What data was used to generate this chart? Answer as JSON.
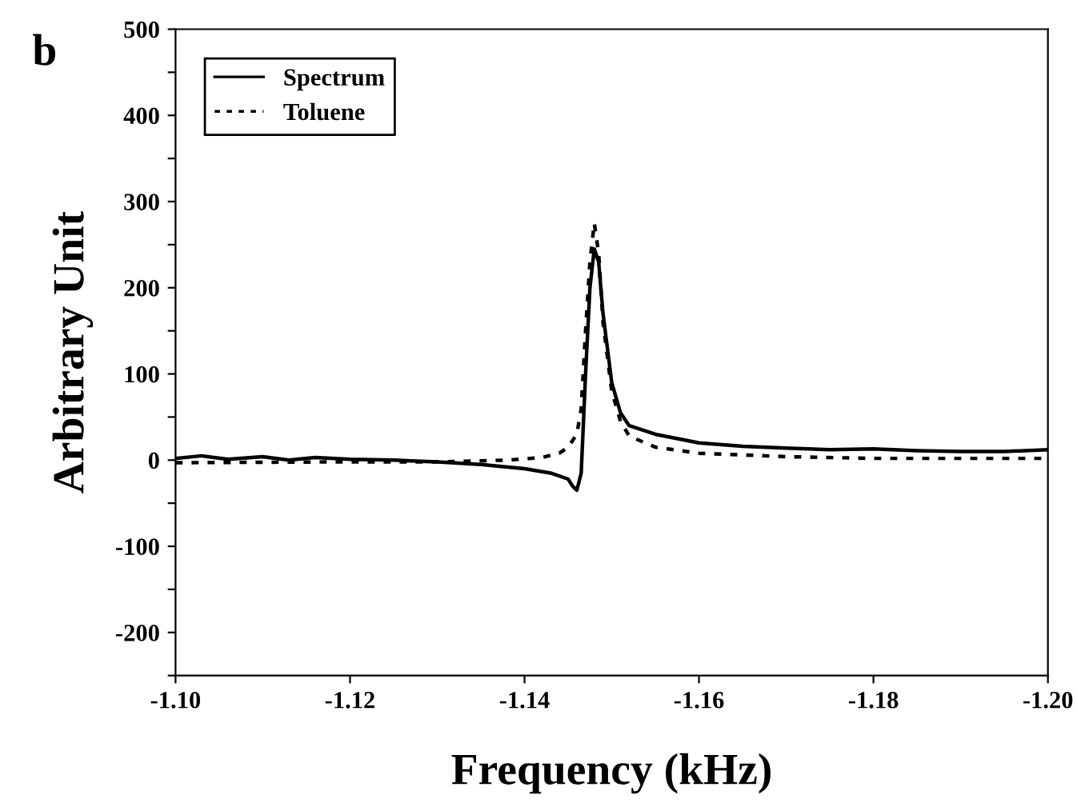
{
  "chart_data": {
    "type": "line",
    "title": "b",
    "xlabel": "Frequency (kHz)",
    "ylabel": "Arbitrary Unit",
    "xlim": [
      -1.1,
      -1.2
    ],
    "ylim": [
      -250,
      500
    ],
    "xticks": [
      {
        "value": -1.1,
        "label": "-1.10"
      },
      {
        "value": -1.12,
        "label": "-1.12"
      },
      {
        "value": -1.14,
        "label": "-1.14"
      },
      {
        "value": -1.16,
        "label": "-1.16"
      },
      {
        "value": -1.18,
        "label": "-1.18"
      },
      {
        "value": -1.2,
        "label": "-1.20"
      }
    ],
    "yticks": [
      {
        "value": -250,
        "label": null
      },
      -200,
      {
        "value": -150,
        "label": null
      },
      -100,
      {
        "value": -50,
        "label": null
      },
      0,
      {
        "value": 50,
        "label": null
      },
      100,
      {
        "value": 150,
        "label": null
      },
      200,
      {
        "value": 250,
        "label": null
      },
      300,
      {
        "value": 350,
        "label": null
      },
      400,
      {
        "value": 450,
        "label": null
      },
      500
    ],
    "legend": "top left",
    "grid": false,
    "marker": "none",
    "series": [
      {
        "name": "Spectrum",
        "color": "#000000",
        "line_style": "solid",
        "x": [
          -1.1,
          -1.103,
          -1.106,
          -1.11,
          -1.113,
          -1.116,
          -1.12,
          -1.125,
          -1.13,
          -1.135,
          -1.14,
          -1.143,
          -1.145,
          -1.1455,
          -1.146,
          -1.1465,
          -1.147,
          -1.1475,
          -1.148,
          -1.1485,
          -1.149,
          -1.15,
          -1.151,
          -1.152,
          -1.155,
          -1.16,
          -1.165,
          -1.17,
          -1.175,
          -1.18,
          -1.185,
          -1.19,
          -1.195,
          -1.2
        ],
        "values": [
          2,
          5,
          1,
          4,
          0,
          3,
          1,
          0,
          -2,
          -5,
          -10,
          -15,
          -22,
          -30,
          -35,
          -15,
          100,
          200,
          245,
          230,
          170,
          90,
          55,
          40,
          30,
          20,
          16,
          14,
          12,
          13,
          11,
          10,
          10,
          12
        ]
      },
      {
        "name": "Toluene",
        "color": "#000000",
        "line_style": "dotted",
        "x": [
          -1.1,
          -1.12,
          -1.13,
          -1.138,
          -1.142,
          -1.144,
          -1.145,
          -1.146,
          -1.1465,
          -1.147,
          -1.1475,
          -1.148,
          -1.1485,
          -1.149,
          -1.15,
          -1.151,
          -1.152,
          -1.155,
          -1.16,
          -1.17,
          -1.18,
          -1.2
        ],
        "values": [
          -3,
          -2,
          -2,
          0,
          3,
          8,
          15,
          30,
          60,
          150,
          230,
          275,
          240,
          160,
          80,
          45,
          28,
          15,
          8,
          4,
          2,
          2
        ]
      }
    ]
  }
}
